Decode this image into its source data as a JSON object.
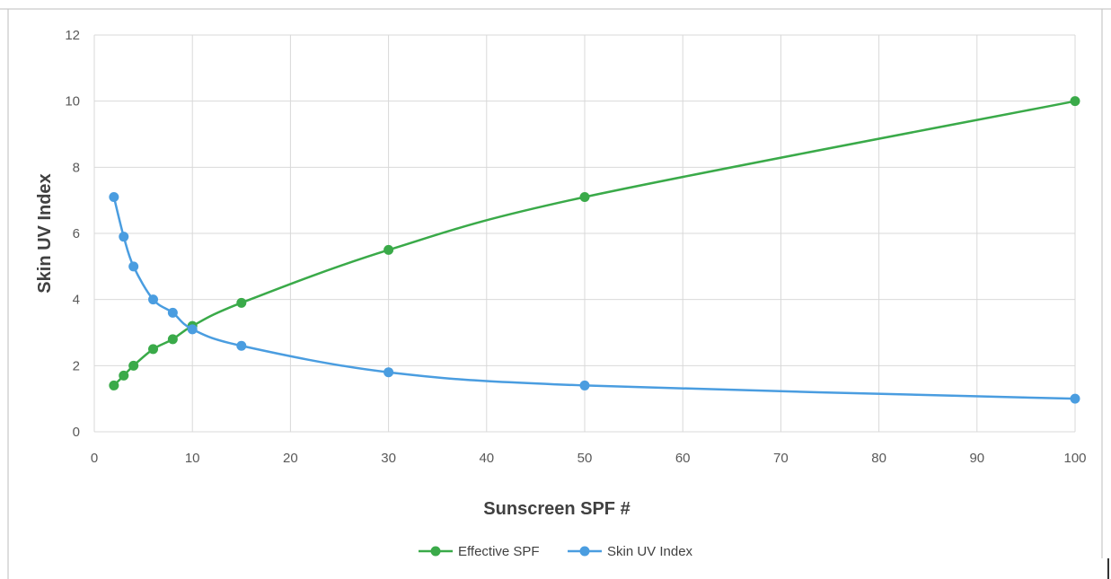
{
  "chart_data": {
    "type": "line",
    "title": "",
    "xlabel": "Sunscreen SPF #",
    "ylabel": "Skin UV Index",
    "xlim": [
      0,
      100
    ],
    "ylim": [
      0,
      12
    ],
    "x_ticks": [
      0,
      10,
      20,
      30,
      40,
      50,
      60,
      70,
      80,
      90,
      100
    ],
    "y_ticks": [
      0,
      2,
      4,
      6,
      8,
      10,
      12
    ],
    "grid": true,
    "legend_position": "bottom",
    "series": [
      {
        "name": "Effective SPF",
        "color": "#3aaa49",
        "points": [
          {
            "x": 2,
            "y": 1.4
          },
          {
            "x": 3,
            "y": 1.7
          },
          {
            "x": 4,
            "y": 2.0
          },
          {
            "x": 6,
            "y": 2.5
          },
          {
            "x": 8,
            "y": 2.8
          },
          {
            "x": 10,
            "y": 3.2
          },
          {
            "x": 15,
            "y": 3.9
          },
          {
            "x": 30,
            "y": 5.5
          },
          {
            "x": 50,
            "y": 7.1
          },
          {
            "x": 100,
            "y": 10.0
          }
        ]
      },
      {
        "name": "Skin UV Index",
        "color": "#4a9de0",
        "points": [
          {
            "x": 2,
            "y": 7.1
          },
          {
            "x": 3,
            "y": 5.9
          },
          {
            "x": 4,
            "y": 5.0
          },
          {
            "x": 6,
            "y": 4.0
          },
          {
            "x": 8,
            "y": 3.6
          },
          {
            "x": 10,
            "y": 3.1
          },
          {
            "x": 15,
            "y": 2.6
          },
          {
            "x": 30,
            "y": 1.8
          },
          {
            "x": 50,
            "y": 1.4
          },
          {
            "x": 100,
            "y": 1.0
          }
        ]
      }
    ]
  }
}
